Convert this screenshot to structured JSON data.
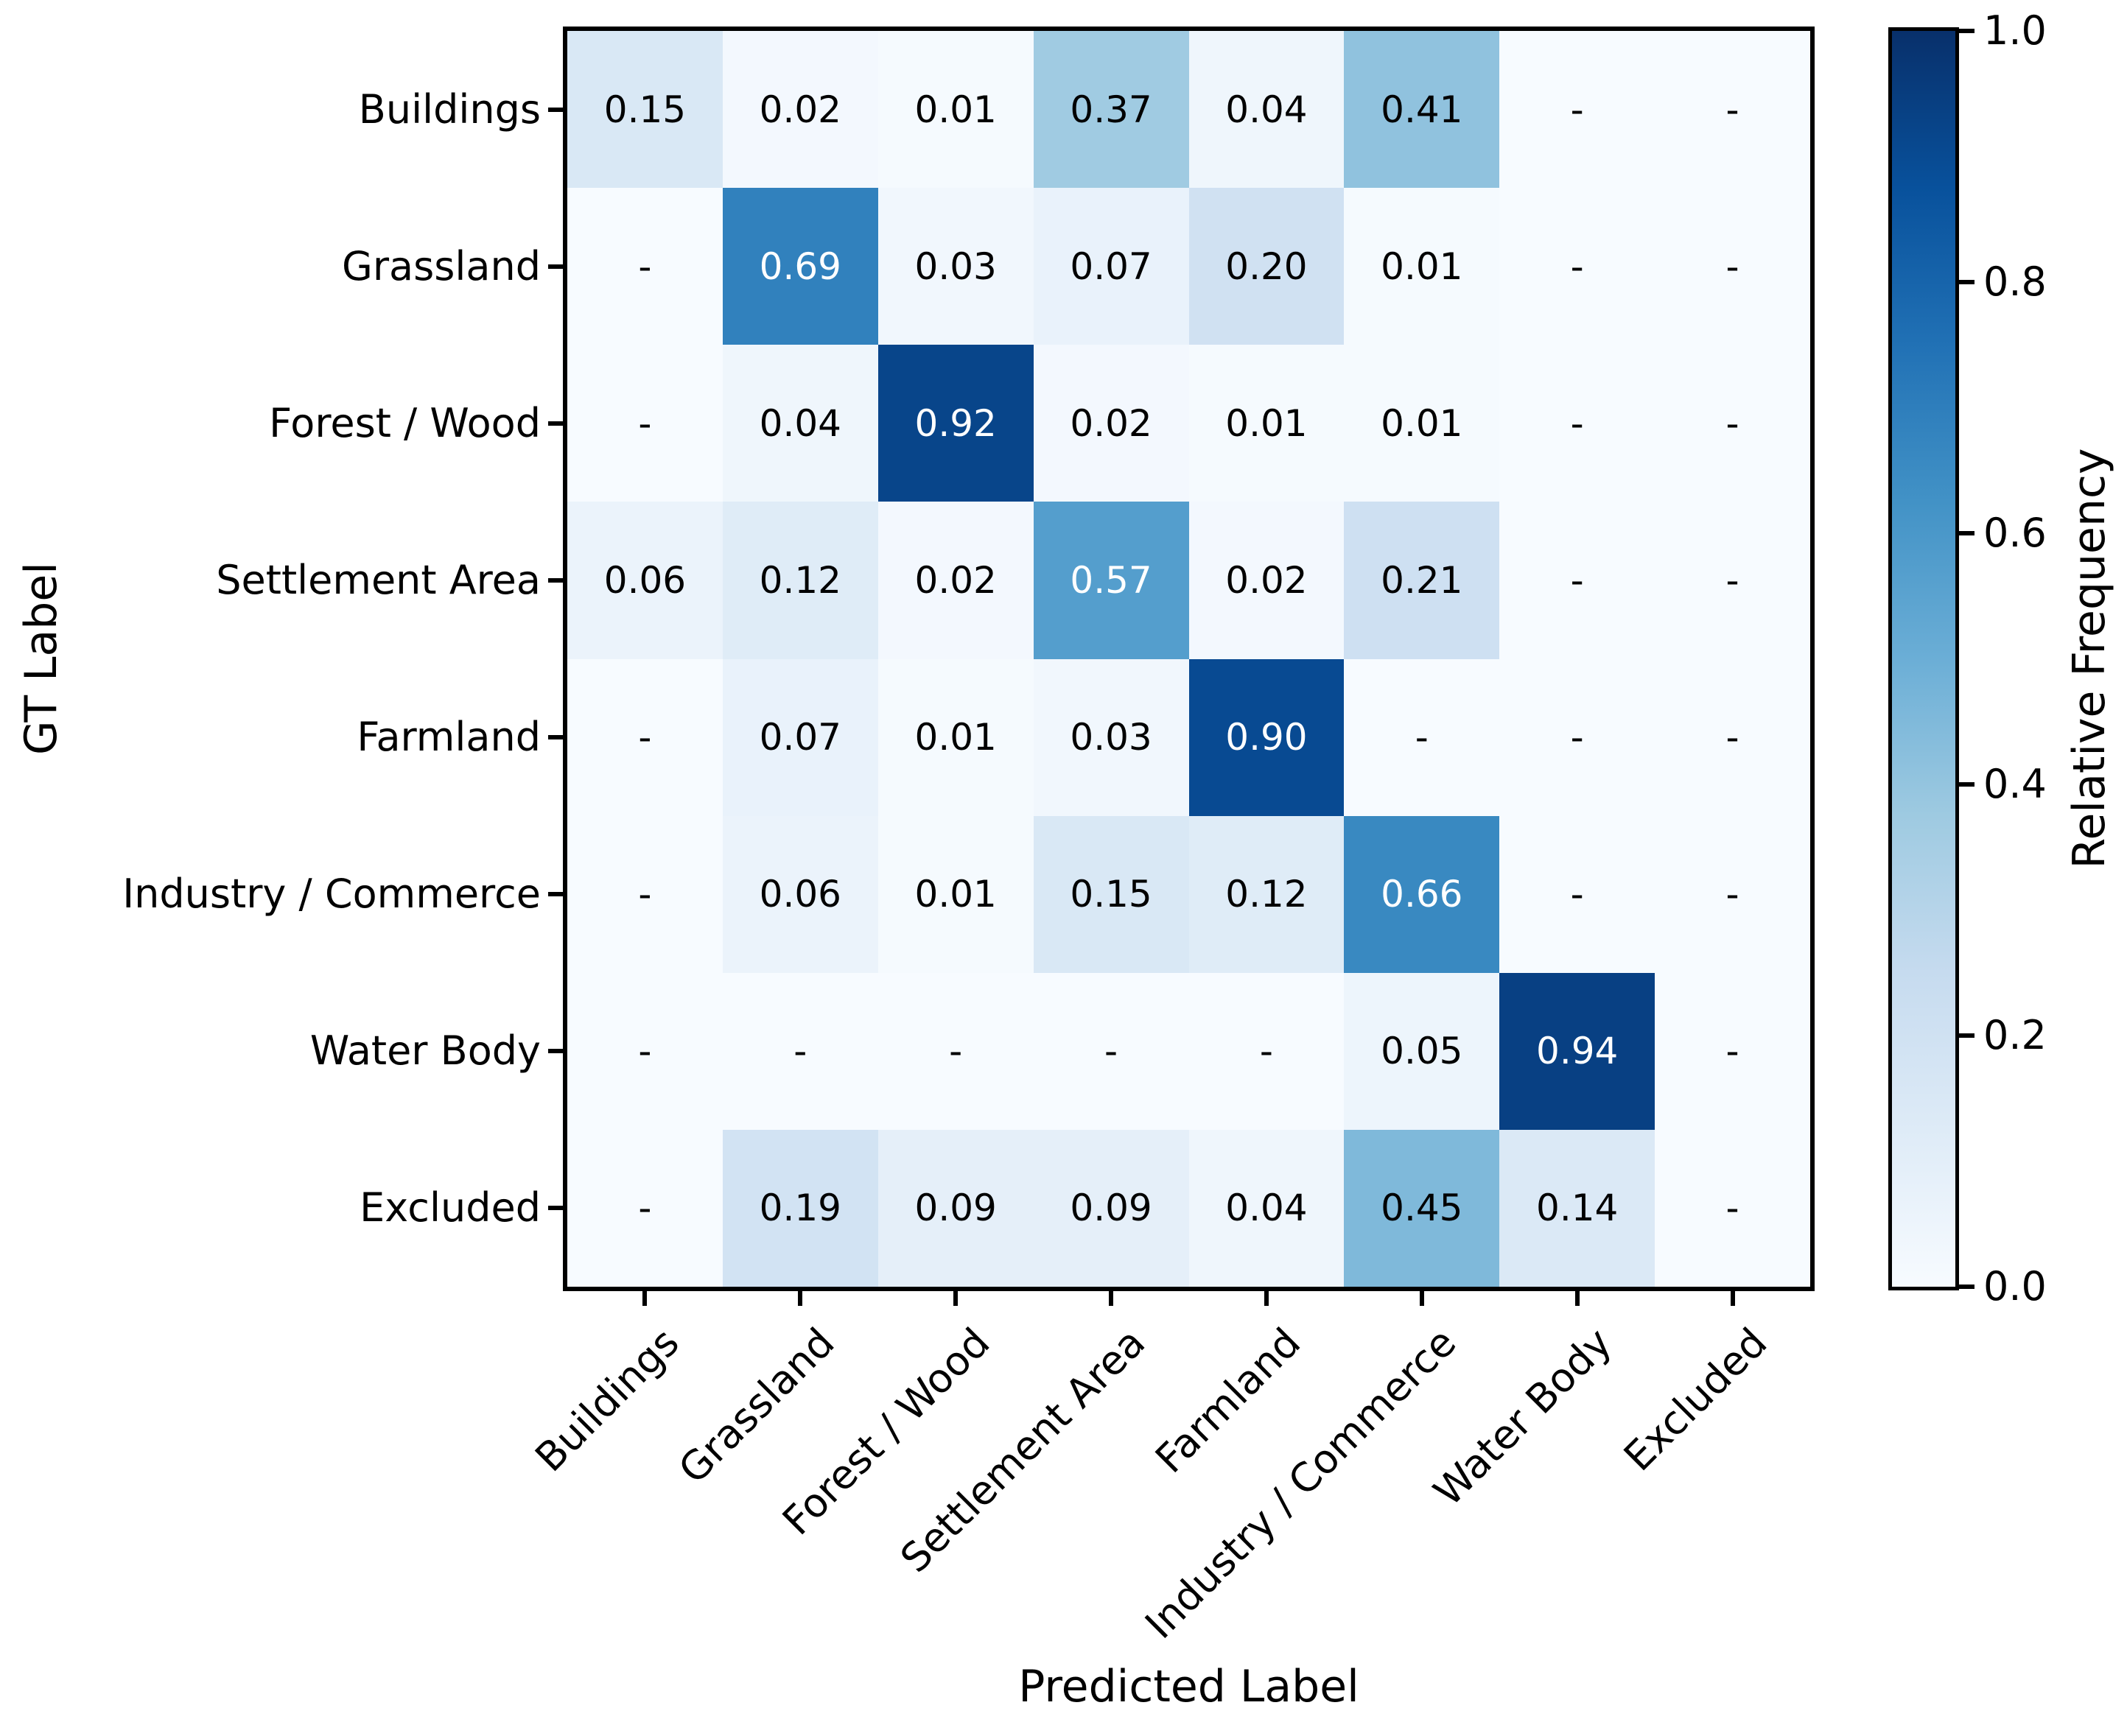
{
  "figure": {
    "xlabel": "Predicted Label",
    "ylabel": "GT Label",
    "colorbar_label": "Relative Frequency"
  },
  "chart_data": {
    "type": "heatmap",
    "title": "",
    "xlabel": "Predicted Label",
    "ylabel": "GT Label",
    "x_categories": [
      "Buildings",
      "Grassland",
      "Forest / Wood",
      "Settlement Area",
      "Farmland",
      "Industry / Commerce",
      "Water Body",
      "Excluded"
    ],
    "y_categories": [
      "Buildings",
      "Grassland",
      "Forest / Wood",
      "Settlement Area",
      "Farmland",
      "Industry / Commerce",
      "Water Body",
      "Excluded"
    ],
    "cell_text": [
      [
        "0.15",
        "0.02",
        "0.01",
        "0.37",
        "0.04",
        "0.41",
        "-",
        "-"
      ],
      [
        "-",
        "0.69",
        "0.03",
        "0.07",
        "0.20",
        "0.01",
        "-",
        "-"
      ],
      [
        "-",
        "0.04",
        "0.92",
        "0.02",
        "0.01",
        "0.01",
        "-",
        "-"
      ],
      [
        "0.06",
        "0.12",
        "0.02",
        "0.57",
        "0.02",
        "0.21",
        "-",
        "-"
      ],
      [
        "-",
        "0.07",
        "0.01",
        "0.03",
        "0.90",
        "-",
        "-",
        "-"
      ],
      [
        "-",
        "0.06",
        "0.01",
        "0.15",
        "0.12",
        "0.66",
        "-",
        "-"
      ],
      [
        "-",
        "-",
        "-",
        "-",
        "-",
        "0.05",
        "0.94",
        "-"
      ],
      [
        "-",
        "0.19",
        "0.09",
        "0.09",
        "0.04",
        "0.45",
        "0.14",
        "-"
      ]
    ],
    "values": [
      [
        0.15,
        0.02,
        0.01,
        0.37,
        0.04,
        0.41,
        null,
        null
      ],
      [
        null,
        0.69,
        0.03,
        0.07,
        0.2,
        0.01,
        null,
        null
      ],
      [
        null,
        0.04,
        0.92,
        0.02,
        0.01,
        0.01,
        null,
        null
      ],
      [
        0.06,
        0.12,
        0.02,
        0.57,
        0.02,
        0.21,
        null,
        null
      ],
      [
        null,
        0.07,
        0.01,
        0.03,
        0.9,
        null,
        null,
        null
      ],
      [
        null,
        0.06,
        0.01,
        0.15,
        0.12,
        0.66,
        null,
        null
      ],
      [
        null,
        null,
        null,
        null,
        null,
        0.05,
        0.94,
        null
      ],
      [
        null,
        0.19,
        0.09,
        0.09,
        0.04,
        0.45,
        0.14,
        null
      ]
    ],
    "vmin": 0.0,
    "vmax": 1.0,
    "colormap": "Blues",
    "colorbar_label": "Relative Frequency",
    "colorbar_ticks": [
      "0.0",
      "0.2",
      "0.4",
      "0.6",
      "0.8",
      "1.0"
    ],
    "colorbar_position": "right",
    "grid": false
  },
  "colors": {
    "background": "#ffffff",
    "text": "#000000",
    "cell_text_light": "#ffffff",
    "cmap_stops": [
      "#f7fbff",
      "#deebf7",
      "#c6dbef",
      "#9ecae1",
      "#6baed6",
      "#4292c6",
      "#2171b5",
      "#08519c",
      "#08306b"
    ]
  }
}
